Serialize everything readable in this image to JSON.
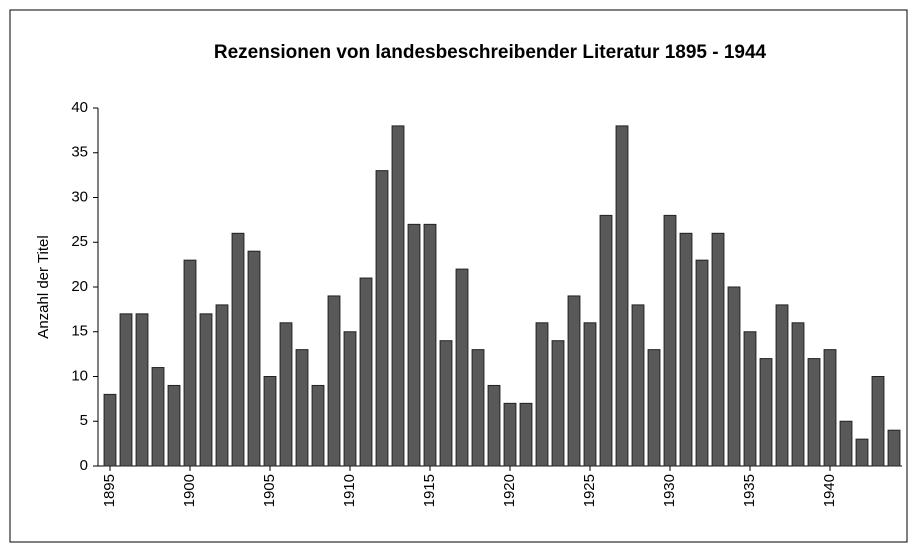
{
  "chart_data": {
    "type": "bar",
    "title": "Rezensionen von landesbeschreibender Literatur 1895 - 1944",
    "y_label": "Anzahl der Titel",
    "categories": [
      "1895",
      null,
      null,
      null,
      null,
      "1900",
      null,
      null,
      null,
      null,
      "1905",
      null,
      null,
      null,
      null,
      "1910",
      null,
      null,
      null,
      null,
      "1915",
      null,
      null,
      null,
      null,
      "1920",
      null,
      null,
      null,
      null,
      "1925",
      null,
      null,
      null,
      null,
      "1930",
      null,
      null,
      null,
      null,
      "1935",
      null,
      null,
      null,
      null,
      "1940",
      null,
      null,
      null,
      null
    ],
    "values": [
      8,
      17,
      17,
      11,
      9,
      23,
      17,
      18,
      26,
      24,
      10,
      16,
      13,
      9,
      19,
      15,
      21,
      33,
      38,
      27,
      27,
      14,
      22,
      13,
      9,
      7,
      7,
      16,
      14,
      19,
      16,
      28,
      38,
      18,
      13,
      28,
      26,
      23,
      26,
      20,
      15,
      12,
      18,
      16,
      12,
      13,
      5,
      3,
      10,
      4
    ],
    "color": "#595959",
    "ylim": [
      0,
      40
    ],
    "yticks": [
      0,
      5,
      10,
      15,
      20,
      25,
      30,
      35,
      40
    ],
    "grid": false
  }
}
